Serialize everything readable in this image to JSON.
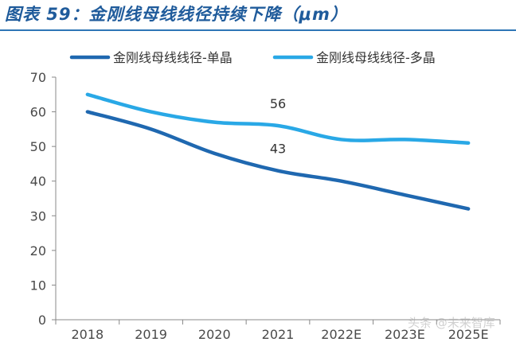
{
  "title": "图表 59：金刚线母线线径持续下降（μm）",
  "watermark": "头条 @未来智库",
  "colors": {
    "mono": "#1f68b0",
    "multi": "#29a8e6",
    "axis": "#888888",
    "text": "#4a4a4a",
    "title": "#1f5b9b"
  },
  "chart_data": {
    "type": "line",
    "categories": [
      "2018",
      "2019",
      "2020",
      "2021",
      "2022E",
      "2023E",
      "2025E"
    ],
    "series": [
      {
        "name": "金刚线母线线径-单晶",
        "values": [
          60,
          55,
          48,
          43,
          40,
          36,
          32
        ],
        "color": "#1f68b0"
      },
      {
        "name": "金刚线母线线径-多晶",
        "values": [
          65,
          60,
          57,
          56,
          52,
          52,
          51
        ],
        "color": "#29a8e6"
      }
    ],
    "annotations": [
      {
        "text": "56",
        "series": 1,
        "index": 3
      },
      {
        "text": "43",
        "series": 0,
        "index": 3
      }
    ],
    "yticks": [
      "0",
      "10",
      "20",
      "30",
      "40",
      "50",
      "60",
      "70"
    ],
    "ylim": [
      0,
      70
    ],
    "xlabel": "",
    "ylabel": "",
    "legend": "top",
    "grid": false
  }
}
